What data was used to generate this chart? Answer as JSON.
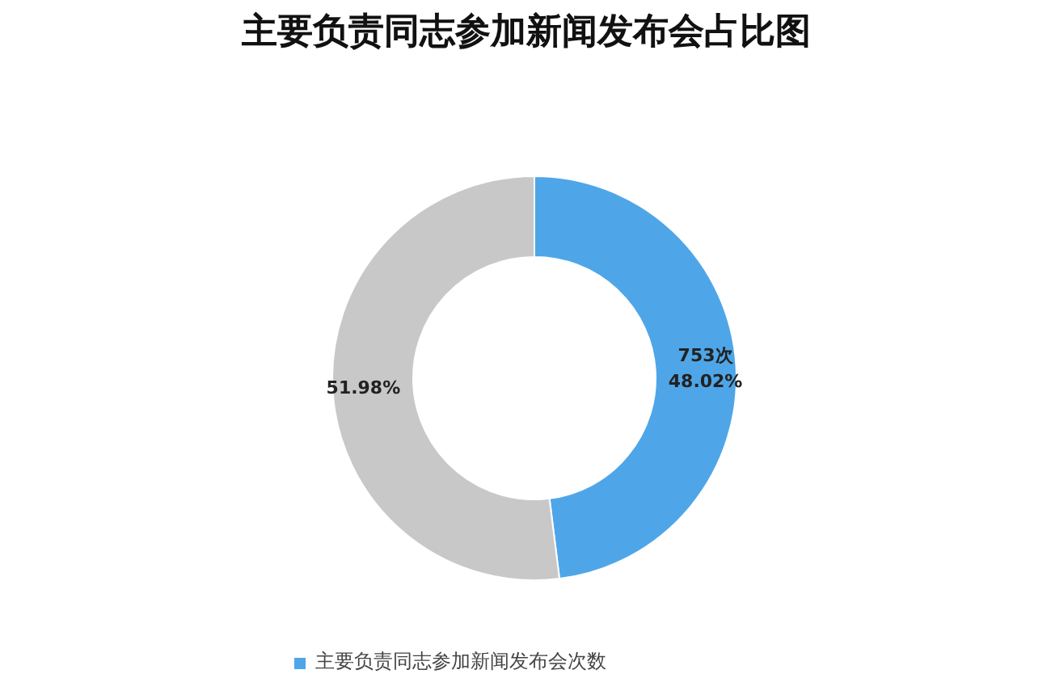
{
  "chart_data": {
    "type": "donut",
    "title": "主要负责同志参加新闻发布会占比图",
    "categories": [
      "主要负责同志参加新闻发布会次数",
      null
    ],
    "values": [
      48.02,
      51.98
    ],
    "colors": [
      "#4ea6e8",
      "#c8c8c8"
    ],
    "value_labels": [
      "753次\n48.02%",
      "51.98%"
    ],
    "legend": "bottom"
  }
}
